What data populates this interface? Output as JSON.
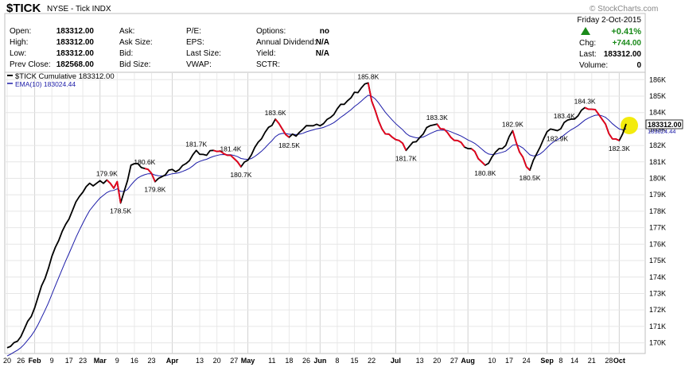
{
  "header": {
    "symbol": "$TICK",
    "exchange_desc": "NYSE - Tick INDX",
    "watermark": "© StockCharts.com",
    "date": "Friday  2-Oct-2015",
    "pct_change": "+0.41%",
    "fields": [
      {
        "label": "Open:",
        "value": "183312.00"
      },
      {
        "label": "High:",
        "value": "183312.00"
      },
      {
        "label": "Low:",
        "value": "183312.00"
      },
      {
        "label": "Prev Close:",
        "value": "182568.00"
      },
      {
        "label": "Ask:",
        "value": ""
      },
      {
        "label": "Ask Size:",
        "value": ""
      },
      {
        "label": "Bid:",
        "value": ""
      },
      {
        "label": "Bid Size:",
        "value": ""
      },
      {
        "label": "P/E:",
        "value": ""
      },
      {
        "label": "EPS:",
        "value": ""
      },
      {
        "label": "Last Size:",
        "value": ""
      },
      {
        "label": "VWAP:",
        "value": ""
      },
      {
        "label": "Options:",
        "value": "no"
      },
      {
        "label": "Annual Dividend:",
        "value": "N/A"
      },
      {
        "label": "Yield:",
        "value": "N/A"
      },
      {
        "label": "SCTR:",
        "value": ""
      },
      {
        "label": "Chg:",
        "value": "+744.00"
      },
      {
        "label": "Last:",
        "value": "183312.00"
      },
      {
        "label": "Volume:",
        "value": "0"
      }
    ],
    "colors": {
      "up": "#1a8a1a",
      "down_segment": "#e8001c",
      "ema": "#1c1ca8",
      "price": "#000000",
      "highlight": "#f2ea00"
    }
  },
  "chart_data": {
    "type": "line",
    "legend": [
      {
        "name": "$TICK Cumulative 183312.00",
        "color": "#000000"
      },
      {
        "name": "EMA(10) 183024.44",
        "color": "#1c1ca8"
      }
    ],
    "last_value_label": "183312.00",
    "ema_last_label": "183024.44",
    "ylim": [
      169400,
      186400
    ],
    "y_ticks": [
      "170K",
      "171K",
      "172K",
      "173K",
      "174K",
      "175K",
      "176K",
      "177K",
      "178K",
      "179K",
      "180K",
      "181K",
      "182K",
      "183K",
      "184K",
      "185K",
      "186K"
    ],
    "y_tick_values": [
      170000,
      171000,
      172000,
      173000,
      174000,
      175000,
      176000,
      177000,
      178000,
      179000,
      180000,
      181000,
      182000,
      183000,
      184000,
      185000,
      186000
    ],
    "x_labels": [
      {
        "text": "20",
        "idx": 0,
        "month": false
      },
      {
        "text": "26",
        "idx": 4,
        "month": false
      },
      {
        "text": "Feb",
        "idx": 8,
        "month": true
      },
      {
        "text": "9",
        "idx": 13,
        "month": false
      },
      {
        "text": "17",
        "idx": 18,
        "month": false
      },
      {
        "text": "23",
        "idx": 22,
        "month": false
      },
      {
        "text": "Mar",
        "idx": 27,
        "month": true
      },
      {
        "text": "9",
        "idx": 32,
        "month": false
      },
      {
        "text": "16",
        "idx": 37,
        "month": false
      },
      {
        "text": "23",
        "idx": 42,
        "month": false
      },
      {
        "text": "Apr",
        "idx": 48,
        "month": true
      },
      {
        "text": "13",
        "idx": 56,
        "month": false
      },
      {
        "text": "20",
        "idx": 61,
        "month": false
      },
      {
        "text": "27",
        "idx": 66,
        "month": false
      },
      {
        "text": "May",
        "idx": 70,
        "month": true
      },
      {
        "text": "11",
        "idx": 77,
        "month": false
      },
      {
        "text": "18",
        "idx": 82,
        "month": false
      },
      {
        "text": "26",
        "idx": 87,
        "month": false
      },
      {
        "text": "Jun",
        "idx": 91,
        "month": true
      },
      {
        "text": "8",
        "idx": 96,
        "month": false
      },
      {
        "text": "15",
        "idx": 101,
        "month": false
      },
      {
        "text": "22",
        "idx": 106,
        "month": false
      },
      {
        "text": "Jul",
        "idx": 113,
        "month": true
      },
      {
        "text": "13",
        "idx": 120,
        "month": false
      },
      {
        "text": "20",
        "idx": 125,
        "month": false
      },
      {
        "text": "27",
        "idx": 130,
        "month": false
      },
      {
        "text": "Aug",
        "idx": 134,
        "month": true
      },
      {
        "text": "10",
        "idx": 141,
        "month": false
      },
      {
        "text": "17",
        "idx": 146,
        "month": false
      },
      {
        "text": "24",
        "idx": 151,
        "month": false
      },
      {
        "text": "Sep",
        "idx": 157,
        "month": true
      },
      {
        "text": "8",
        "idx": 161,
        "month": false
      },
      {
        "text": "14",
        "idx": 165,
        "month": false
      },
      {
        "text": "21",
        "idx": 170,
        "month": false
      },
      {
        "text": "28",
        "idx": 175,
        "month": false
      },
      {
        "text": "Oct",
        "idx": 178,
        "month": true
      }
    ],
    "anchors": [
      [
        0,
        169700
      ],
      [
        3,
        170100
      ],
      [
        7,
        171600
      ],
      [
        11,
        173900
      ],
      [
        14,
        175800
      ],
      [
        17,
        177200
      ],
      [
        21,
        178900
      ],
      [
        23,
        179500
      ],
      [
        26,
        179700
      ],
      [
        29,
        179900
      ],
      [
        31,
        179400
      ],
      [
        32,
        179800
      ],
      [
        33,
        178500
      ],
      [
        34,
        179200
      ],
      [
        36,
        180800
      ],
      [
        38,
        180900
      ],
      [
        40,
        180600
      ],
      [
        42,
        180300
      ],
      [
        43,
        179800
      ],
      [
        45,
        180100
      ],
      [
        47,
        180500
      ],
      [
        49,
        180400
      ],
      [
        52,
        180900
      ],
      [
        55,
        181700
      ],
      [
        58,
        181400
      ],
      [
        60,
        181700
      ],
      [
        63,
        181500
      ],
      [
        65,
        181400
      ],
      [
        66,
        181200
      ],
      [
        67,
        181000
      ],
      [
        68,
        180700
      ],
      [
        70,
        181100
      ],
      [
        73,
        182200
      ],
      [
        76,
        183100
      ],
      [
        78,
        183600
      ],
      [
        80,
        183000
      ],
      [
        82,
        182500
      ],
      [
        85,
        182800
      ],
      [
        88,
        183200
      ],
      [
        91,
        183200
      ],
      [
        94,
        183700
      ],
      [
        97,
        184500
      ],
      [
        100,
        184900
      ],
      [
        103,
        185500
      ],
      [
        105,
        185800
      ],
      [
        106,
        184700
      ],
      [
        108,
        183500
      ],
      [
        110,
        182700
      ],
      [
        112,
        182500
      ],
      [
        114,
        182300
      ],
      [
        116,
        181700
      ],
      [
        118,
        182200
      ],
      [
        121,
        182700
      ],
      [
        123,
        183200
      ],
      [
        125,
        183300
      ],
      [
        127,
        183000
      ],
      [
        129,
        182500
      ],
      [
        131,
        182300
      ],
      [
        133,
        181900
      ],
      [
        135,
        181800
      ],
      [
        137,
        181200
      ],
      [
        139,
        180800
      ],
      [
        141,
        181300
      ],
      [
        143,
        181800
      ],
      [
        145,
        182000
      ],
      [
        147,
        182900
      ],
      [
        149,
        181600
      ],
      [
        151,
        180700
      ],
      [
        152,
        180500
      ],
      [
        154,
        181500
      ],
      [
        156,
        182400
      ],
      [
        158,
        183000
      ],
      [
        160,
        182900
      ],
      [
        162,
        183400
      ],
      [
        164,
        183600
      ],
      [
        166,
        183800
      ],
      [
        168,
        184300
      ],
      [
        170,
        184200
      ],
      [
        172,
        183900
      ],
      [
        174,
        183300
      ],
      [
        176,
        182400
      ],
      [
        178,
        182300
      ],
      [
        180,
        183312
      ]
    ],
    "down_segments": [
      [
        29,
        33
      ],
      [
        40,
        43
      ],
      [
        60,
        68
      ],
      [
        78,
        82
      ],
      [
        105,
        116
      ],
      [
        125,
        133
      ],
      [
        135,
        139
      ],
      [
        147,
        152
      ],
      [
        168,
        178
      ]
    ],
    "annotations": [
      {
        "text": "179.9K",
        "idx": 29,
        "value": 179900,
        "pos": "above"
      },
      {
        "text": "178.5K",
        "idx": 33,
        "value": 178500,
        "pos": "below"
      },
      {
        "text": "180.6K",
        "idx": 40,
        "value": 180600,
        "pos": "above"
      },
      {
        "text": "179.8K",
        "idx": 43,
        "value": 179800,
        "pos": "below"
      },
      {
        "text": "181.7K",
        "idx": 55,
        "value": 181700,
        "pos": "above"
      },
      {
        "text": "181.4K",
        "idx": 65,
        "value": 181400,
        "pos": "above"
      },
      {
        "text": "180.7K",
        "idx": 68,
        "value": 180700,
        "pos": "below"
      },
      {
        "text": "183.6K",
        "idx": 78,
        "value": 183600,
        "pos": "above"
      },
      {
        "text": "182.5K",
        "idx": 82,
        "value": 182500,
        "pos": "below"
      },
      {
        "text": "185.8K",
        "idx": 105,
        "value": 185800,
        "pos": "above"
      },
      {
        "text": "181.7K",
        "idx": 116,
        "value": 181700,
        "pos": "below"
      },
      {
        "text": "183.3K",
        "idx": 125,
        "value": 183300,
        "pos": "above"
      },
      {
        "text": "180.8K",
        "idx": 139,
        "value": 180800,
        "pos": "below"
      },
      {
        "text": "182.9K",
        "idx": 147,
        "value": 182900,
        "pos": "above"
      },
      {
        "text": "180.5K",
        "idx": 152,
        "value": 180500,
        "pos": "below"
      },
      {
        "text": "183.4K",
        "idx": 162,
        "value": 183400,
        "pos": "above"
      },
      {
        "text": "182.9K",
        "idx": 160,
        "value": 182900,
        "pos": "below"
      },
      {
        "text": "184.3K",
        "idx": 168,
        "value": 184300,
        "pos": "above"
      },
      {
        "text": "182.3K",
        "idx": 178,
        "value": 182300,
        "pos": "below"
      }
    ]
  }
}
